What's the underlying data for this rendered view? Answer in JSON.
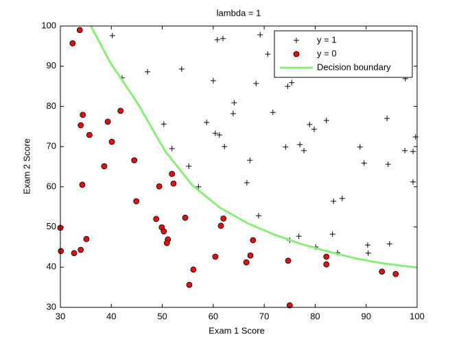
{
  "chart_data": {
    "type": "scatter",
    "title": "lambda = 1",
    "x_label": "Exam 1 Score",
    "y_label": "Exam 2 Score",
    "xlim": [
      30,
      100
    ],
    "ylim": [
      30,
      100
    ],
    "xticks": [
      30,
      40,
      50,
      60,
      70,
      80,
      90,
      100
    ],
    "yticks": [
      30,
      40,
      50,
      60,
      70,
      80,
      90,
      100
    ],
    "grid": false,
    "legend": "northeast",
    "series": [
      {
        "name": "y = 1",
        "color": "#000000",
        "marker": "plus",
        "x": [
          40.2,
          42.1,
          47.1,
          53.8,
          60.8,
          61.9,
          69.2,
          70.7,
          60.0,
          64.1,
          63.9,
          68.4,
          71.7,
          74.6,
          75.4,
          50.3,
          58.7,
          60.4,
          61.2,
          62.2,
          51.9,
          55.2,
          57.1,
          67.2,
          66.6,
          68.9,
          74.2,
          77.0,
          77.8,
          78.9,
          79.8,
          82.2,
          83.6,
          85.3,
          83.4,
          76.8,
          75.0,
          80.1,
          84.4,
          90.3,
          90.4,
          94.6,
          88.8,
          89.6,
          94.3,
          94.1,
          97.6,
          99.2,
          99.7,
          99.2,
          97.7
        ],
        "values": [
          97.6,
          87.1,
          88.6,
          89.3,
          96.6,
          96.9,
          97.8,
          93.0,
          86.4,
          80.9,
          78.2,
          85.7,
          78.5,
          85.0,
          85.9,
          75.6,
          76.0,
          73.3,
          72.9,
          70.0,
          69.5,
          65.1,
          60.0,
          66.6,
          61.0,
          52.8,
          69.9,
          70.5,
          69.0,
          75.5,
          74.3,
          76.5,
          56.4,
          57.1,
          48.2,
          47.7,
          46.7,
          45.0,
          43.6,
          45.5,
          43.5,
          45.8,
          69.9,
          65.9,
          65.6,
          77.0,
          69.0,
          68.8,
          72.4,
          61.2,
          86.9
        ]
      },
      {
        "name": "y = 0",
        "color": "#e01010",
        "marker": "circle",
        "x": [
          32.4,
          33.8,
          34.4,
          34.0,
          35.7,
          34.3,
          39.3,
          40.1,
          41.8,
          38.6,
          44.5,
          44.9,
          49.4,
          51.9,
          52.2,
          48.8,
          49.9,
          50.3,
          51.1,
          50.9,
          54.5,
          30.0,
          30.1,
          32.7,
          34.0,
          35.1,
          56.1,
          55.3,
          60.4,
          61.5,
          62.0,
          67.8,
          66.5,
          67.3,
          74.7,
          75.0,
          82.2,
          82.2,
          93.1,
          95.8
        ],
        "values": [
          95.7,
          99.0,
          77.9,
          75.3,
          72.9,
          60.5,
          76.2,
          71.2,
          78.9,
          65.1,
          66.6,
          56.4,
          60.1,
          63.2,
          60.8,
          52.0,
          49.9,
          48.9,
          46.9,
          46.0,
          52.3,
          49.8,
          44.0,
          43.5,
          44.3,
          47.0,
          39.4,
          35.6,
          42.6,
          50.3,
          52.1,
          46.7,
          41.2,
          42.9,
          41.6,
          30.5,
          42.6,
          40.7,
          38.9,
          38.3
        ]
      },
      {
        "name": "Decision boundary",
        "color": "#88ee77",
        "marker": "line",
        "x": [
          36.0,
          39.7,
          45.1,
          50.5,
          55.8,
          61.2,
          66.6,
          72.0,
          77.4,
          82.8,
          88.2,
          93.5,
          100
        ],
        "values": [
          100,
          91.1,
          80.9,
          69.0,
          60.5,
          54.9,
          51.0,
          48.1,
          45.7,
          43.8,
          42.1,
          40.9,
          39.9
        ]
      }
    ]
  }
}
